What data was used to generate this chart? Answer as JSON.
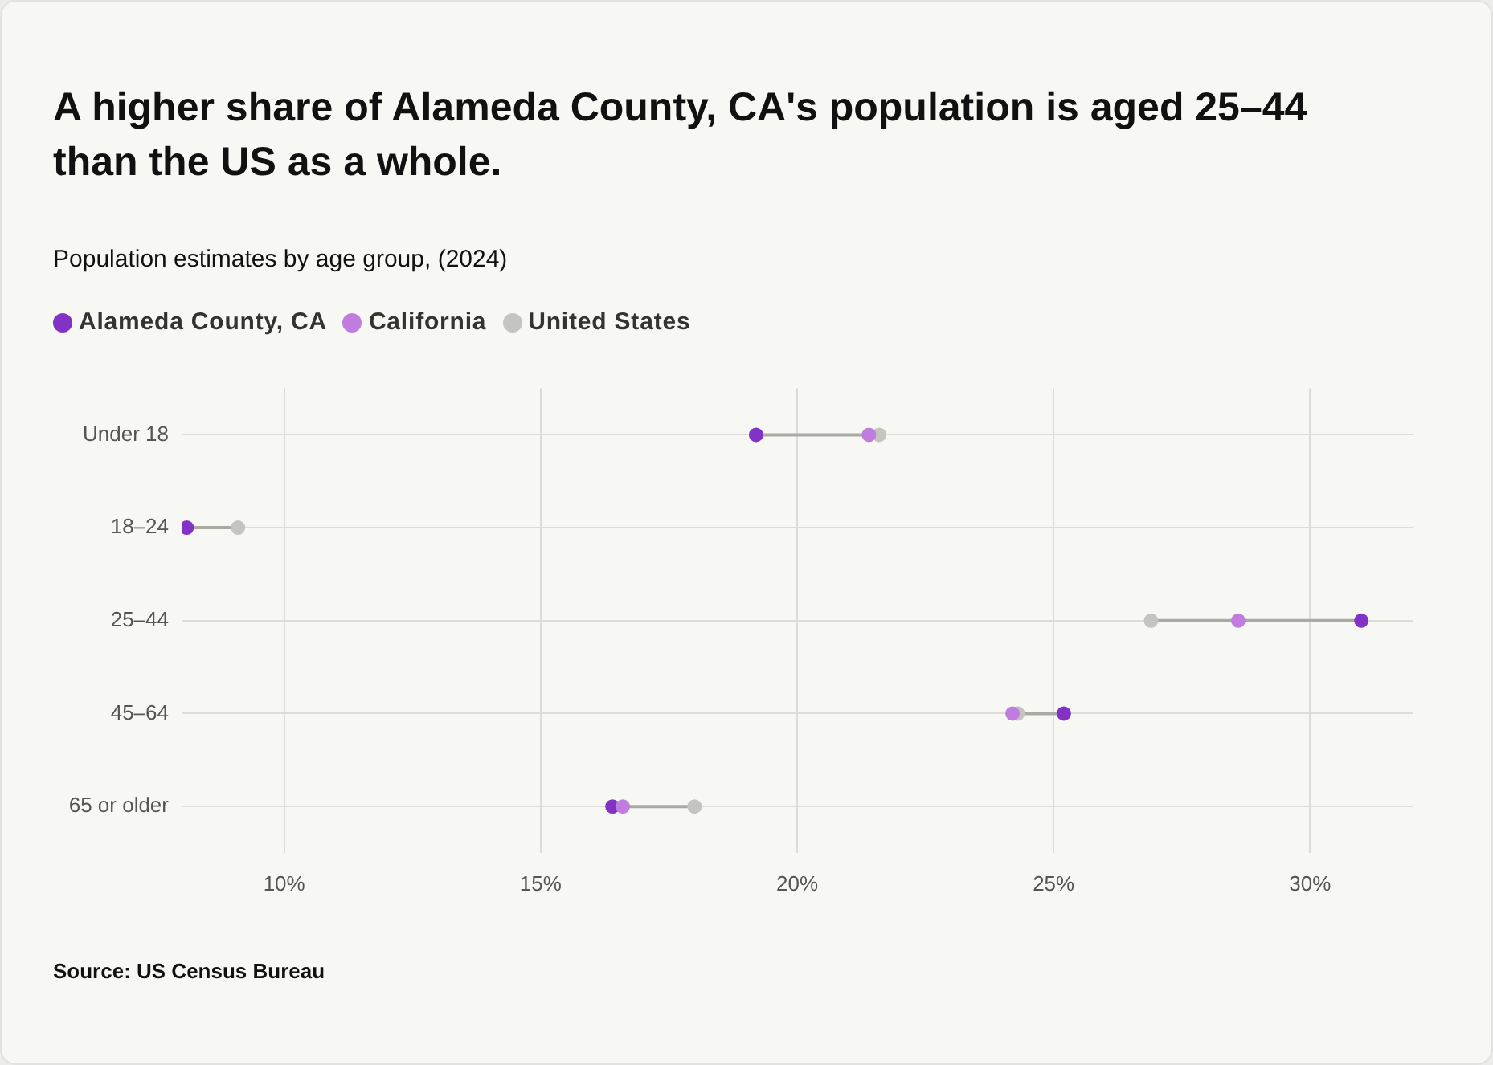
{
  "chart_data": {
    "type": "scatter",
    "orientation": "horizontal",
    "title": "A higher share of Alameda County, CA's population is aged 25–44 than the US as a whole.",
    "subtitle": "Population estimates by age group, (2024)",
    "categories": [
      "Under 18",
      "18–24",
      "25–44",
      "45–64",
      "65 or older"
    ],
    "series": [
      {
        "name": "Alameda County, CA",
        "color": "#8233c6",
        "values": [
          19.2,
          8.1,
          31.0,
          25.2,
          16.4
        ]
      },
      {
        "name": "California",
        "color": "#c07ddf",
        "values": [
          21.4,
          null,
          28.6,
          24.2,
          16.6
        ]
      },
      {
        "name": "United States",
        "color": "#c4c4c0",
        "values": [
          21.6,
          9.1,
          26.9,
          24.3,
          18.0
        ]
      }
    ],
    "xlim": [
      8,
      32
    ],
    "xticks": [
      {
        "value": 10,
        "label": "10%"
      },
      {
        "value": 15,
        "label": "15%"
      },
      {
        "value": 20,
        "label": "20%"
      },
      {
        "value": 25,
        "label": "25%"
      },
      {
        "value": 30,
        "label": "30%"
      }
    ],
    "grid": true,
    "legend": "top left",
    "marker": "circle",
    "annotations": [
      "Source: US Census Bureau"
    ]
  }
}
